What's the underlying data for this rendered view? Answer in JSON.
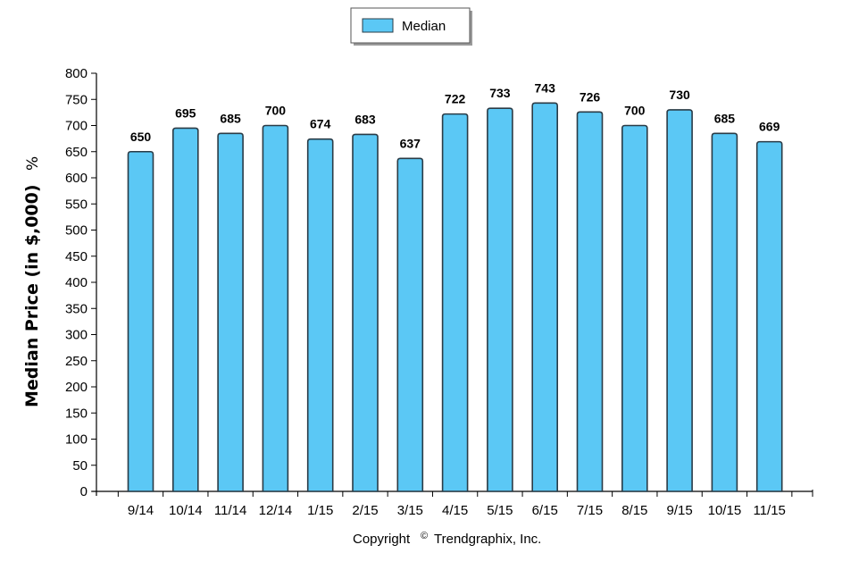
{
  "chart_data": {
    "type": "bar",
    "categories": [
      "9/14",
      "10/14",
      "11/14",
      "12/14",
      "1/15",
      "2/15",
      "3/15",
      "4/15",
      "5/15",
      "6/15",
      "7/15",
      "8/15",
      "9/15",
      "10/15",
      "11/15"
    ],
    "series": [
      {
        "name": "Median",
        "values": [
          650,
          695,
          685,
          700,
          674,
          683,
          637,
          722,
          733,
          743,
          726,
          700,
          730,
          685,
          669
        ]
      }
    ],
    "title": "",
    "xlabel": "",
    "ylabel": "Median Price (in $,000)",
    "ylabel_unit": "%",
    "ylim": [
      0,
      800
    ],
    "yticks": [
      0,
      50,
      100,
      150,
      200,
      250,
      300,
      350,
      400,
      450,
      500,
      550,
      600,
      650,
      700,
      750,
      800
    ],
    "grid": false,
    "legend_position": "top-center",
    "data_labels": true
  },
  "legend": {
    "label": "Median"
  },
  "copyright": {
    "prefix": "Copyright",
    "symbol": "©",
    "text": "Trendgraphix, Inc."
  },
  "colors": {
    "bar_fill": "#5BC8F5",
    "bar_stroke": "#2A3B46",
    "axis": "#000000",
    "legend_shadow": "#9A9A9A"
  }
}
